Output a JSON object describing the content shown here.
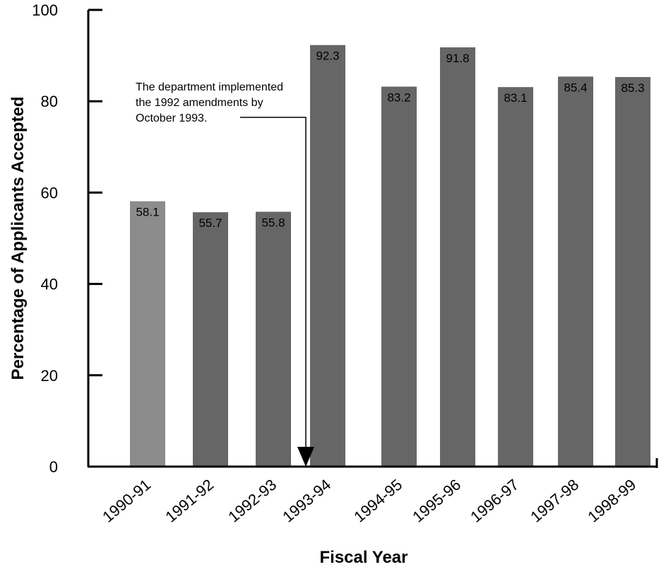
{
  "chart_data": {
    "type": "bar",
    "title": "",
    "xlabel": "Fiscal Year",
    "ylabel": "Percentage of Applicants Accepted",
    "ylim": [
      0,
      100
    ],
    "yticks": [
      "0",
      "20",
      "40",
      "60",
      "80",
      "100"
    ],
    "grid": false,
    "categories": [
      "1990-91",
      "1991-92",
      "1992-93",
      "1993-94",
      "1994-95",
      "1995-96",
      "1996-97",
      "1997-98",
      "1998-99"
    ],
    "values": [
      58.1,
      55.7,
      55.8,
      92.3,
      83.2,
      91.8,
      83.1,
      85.4,
      85.3
    ],
    "data_labels": [
      "58.1",
      "55.7",
      "55.8",
      "92.3",
      "83.2",
      "91.8",
      "83.1",
      "85.4",
      "85.3"
    ],
    "bar_colors": [
      "#8c8c8c",
      "#666666",
      "#666666",
      "#666666",
      "#666666",
      "#666666",
      "#666666",
      "#666666",
      "#666666"
    ],
    "annotation": {
      "lines": [
        "The department implemented",
        "the 1992 amendments by",
        "October 1993."
      ],
      "points_to": "1993-94"
    }
  }
}
